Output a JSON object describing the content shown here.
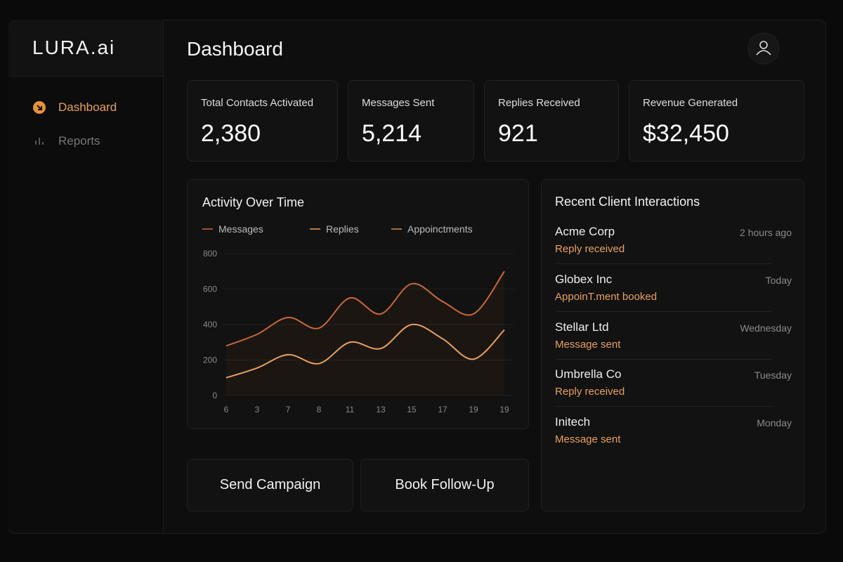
{
  "brand": "LURA.ai",
  "nav": [
    {
      "label": "Dashboard",
      "active": true
    },
    {
      "label": "Reports",
      "active": false
    }
  ],
  "header": {
    "title": "Dashboard"
  },
  "stats": [
    {
      "label": "Total Contacts Activated",
      "value": "2,380"
    },
    {
      "label": "Messages Sent",
      "value": "5,214"
    },
    {
      "label": "Replies Received",
      "value": "921"
    },
    {
      "label": "Revenue Generated",
      "value": "$32,450"
    }
  ],
  "chart_data": {
    "type": "line",
    "title": "Activity Over Time",
    "categories": [
      "6",
      "3",
      "7",
      "8",
      "11",
      "13",
      "15",
      "17",
      "19",
      "19"
    ],
    "series": [
      {
        "name": "Messages",
        "color": "#c8683a",
        "values": [
          280,
          345,
          440,
          380,
          550,
          460,
          630,
          530,
          460,
          700
        ]
      },
      {
        "name": "Replies",
        "color": "#e8a060",
        "values": [
          100,
          155,
          230,
          180,
          300,
          265,
          400,
          320,
          205,
          370
        ]
      },
      {
        "name": "Appoinctments",
        "color": "#d9894a"
      }
    ],
    "ylim": [
      0,
      800
    ],
    "yticks": [
      0,
      200,
      400,
      600,
      800
    ],
    "grid": true
  },
  "interactions": {
    "title": "Recent Client Interactions",
    "items": [
      {
        "name": "Acme Corp",
        "status": "Reply received",
        "time": "2 hours ago"
      },
      {
        "name": "Globex Inc",
        "status": "AppoinT.ment booked",
        "time": "Today"
      },
      {
        "name": "Stellar Ltd",
        "status": "Message sent",
        "time": "Wednesday"
      },
      {
        "name": "Umbrella Co",
        "status": "Reply received",
        "time": "Tuesday"
      },
      {
        "name": "Initech",
        "status": "Message sent",
        "time": "Monday"
      }
    ]
  },
  "buttons": [
    "Send Campaign",
    "Book Follow-Up"
  ]
}
